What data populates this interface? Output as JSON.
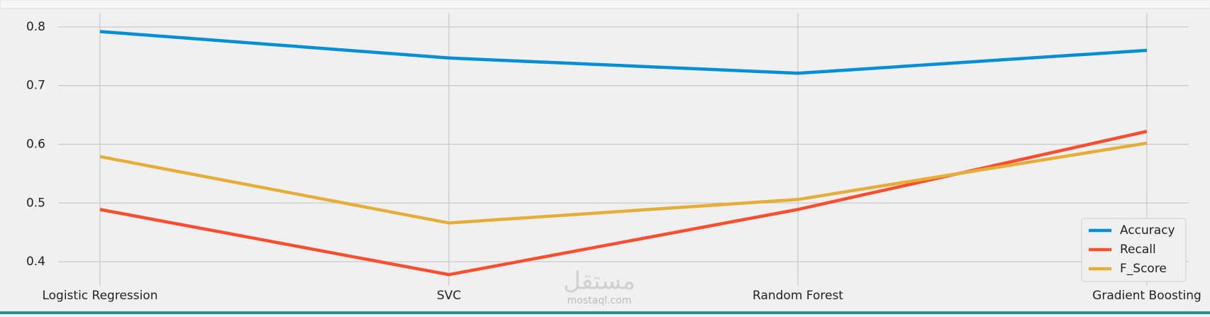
{
  "chart_data": {
    "type": "line",
    "categories": [
      "Logistic Regression",
      "SVC",
      "Random Forest",
      "Gradient Boosting"
    ],
    "series": [
      {
        "name": "Accuracy",
        "color": "#008fd5",
        "values": [
          0.792,
          0.747,
          0.721,
          0.76
        ]
      },
      {
        "name": "Recall",
        "color": "#fc4f30",
        "values": [
          0.489,
          0.378,
          0.489,
          0.622
        ]
      },
      {
        "name": "F_Score",
        "color": "#e5ae38",
        "values": [
          0.579,
          0.466,
          0.506,
          0.602
        ]
      }
    ],
    "ylim": [
      0.359,
      0.824
    ],
    "yticks": [
      0.4,
      0.5,
      0.6,
      0.7,
      0.8
    ],
    "grid": true,
    "legend": "lower right"
  },
  "watermark": {
    "arabic": "مستقل",
    "latin": "mostaql.com"
  }
}
